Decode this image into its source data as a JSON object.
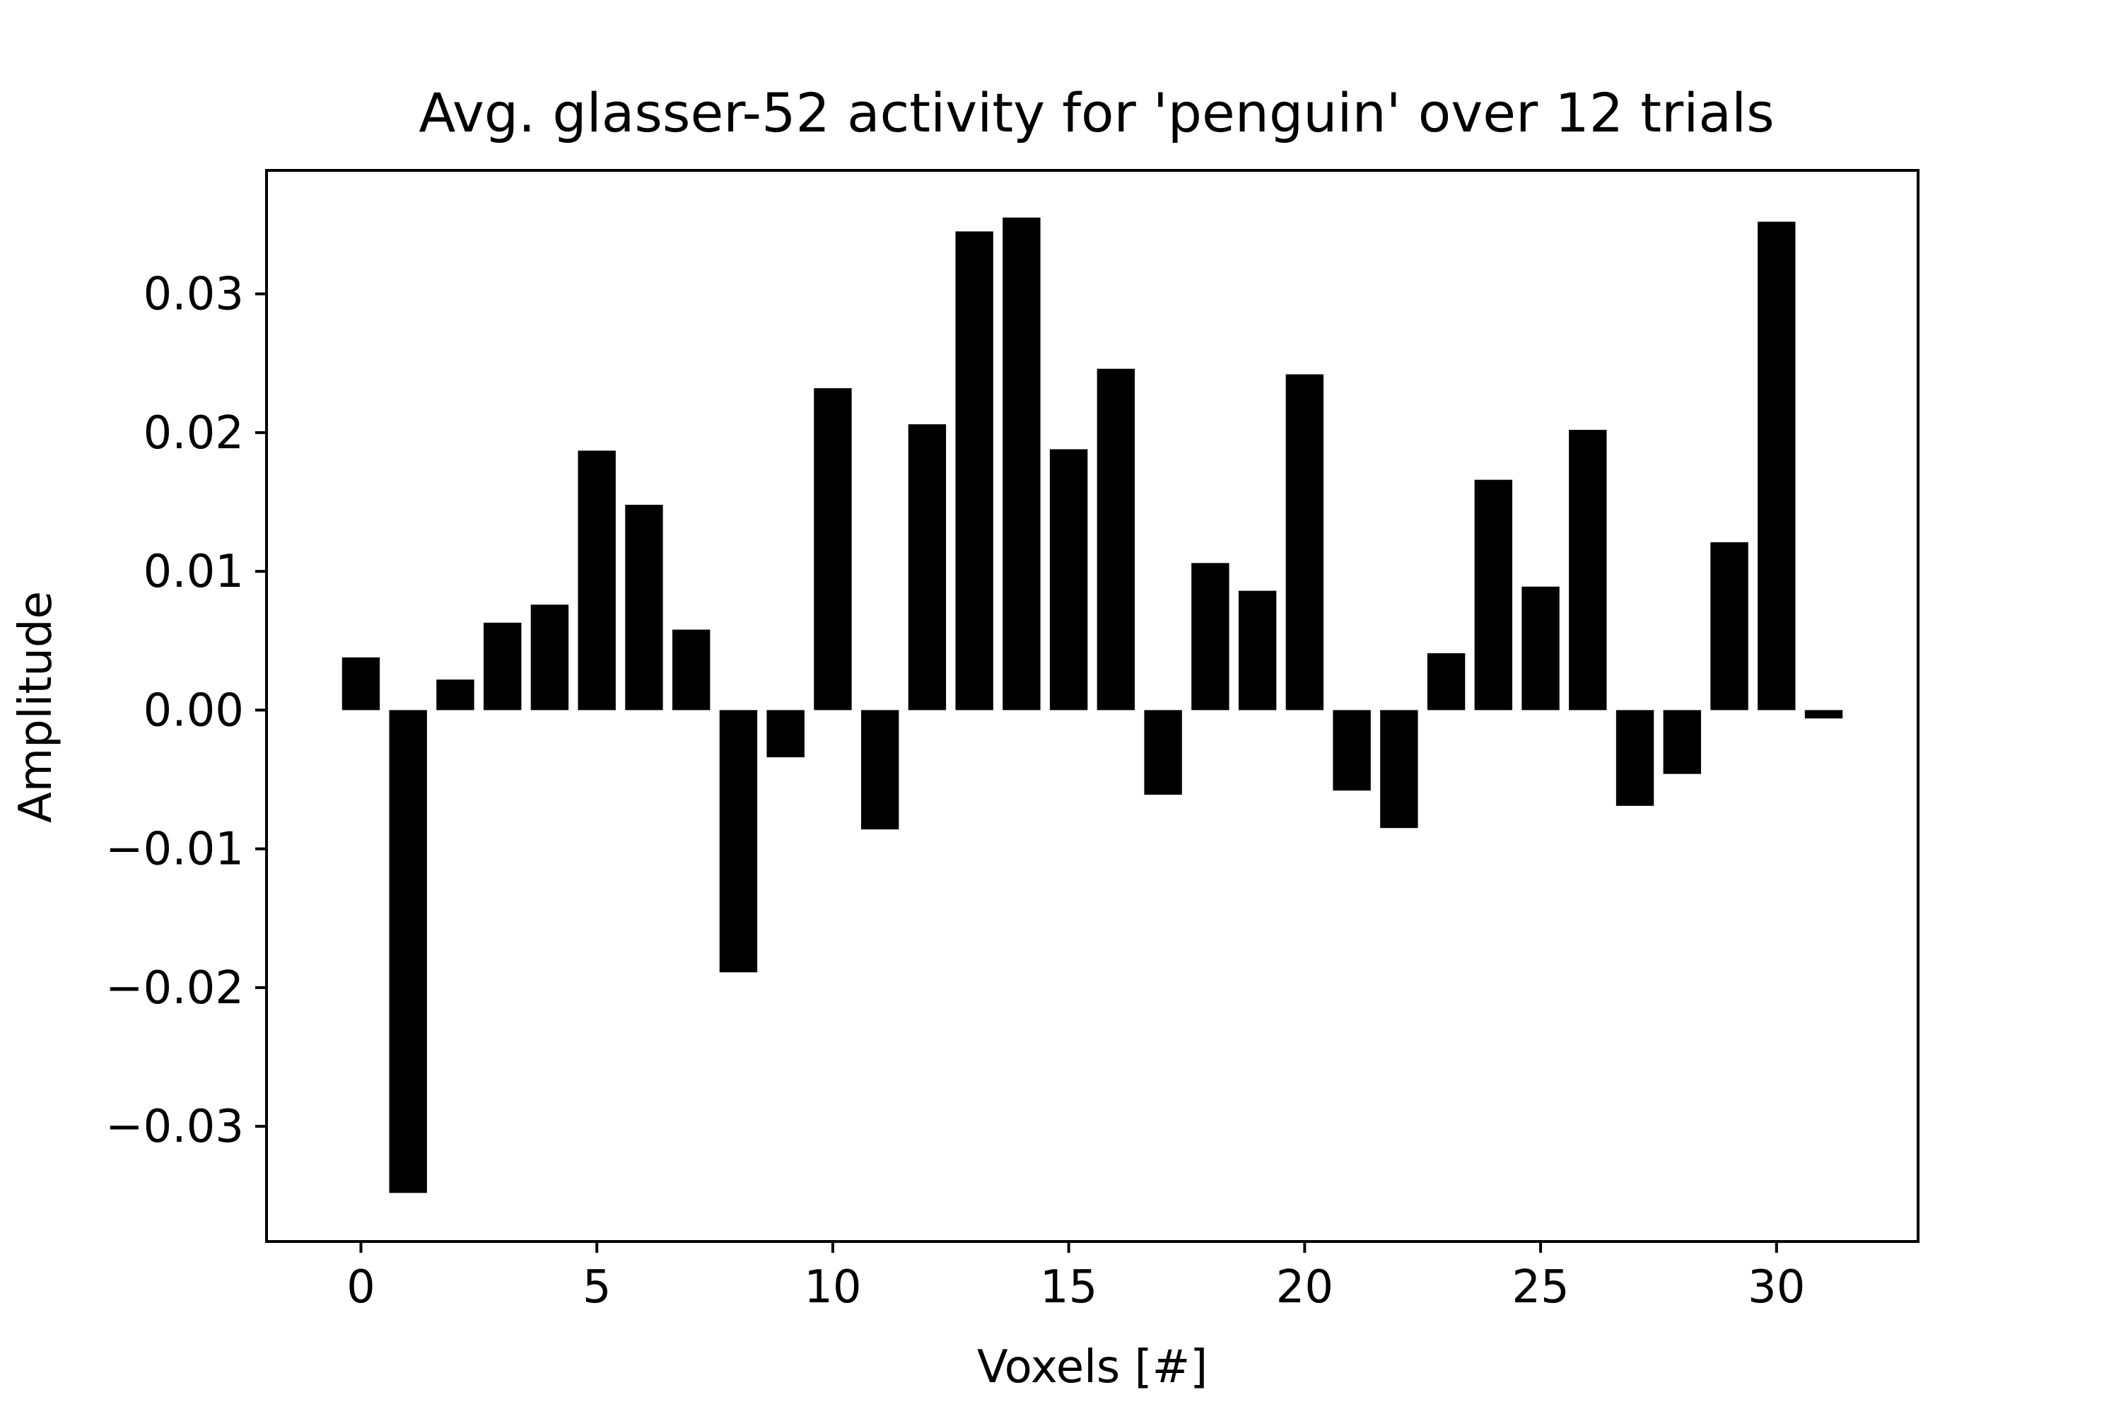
{
  "chart_data": {
    "type": "bar",
    "title": "Avg. glasser-52 activity for 'penguin' over 12 trials",
    "xlabel": "Voxels [#]",
    "ylabel": "Amplitude",
    "x": [
      0,
      1,
      2,
      3,
      4,
      5,
      6,
      7,
      8,
      9,
      10,
      11,
      12,
      13,
      14,
      15,
      16,
      17,
      18,
      19,
      20,
      21,
      22,
      23,
      24,
      25,
      26,
      27,
      28,
      29,
      30,
      31
    ],
    "values": [
      0.0038,
      -0.0348,
      0.0022,
      0.0063,
      0.0076,
      0.0187,
      0.0148,
      0.0058,
      -0.0189,
      -0.0034,
      0.0232,
      -0.0086,
      0.0206,
      0.0345,
      0.0355,
      0.0188,
      0.0246,
      -0.0061,
      0.0106,
      0.0086,
      0.0242,
      -0.0058,
      -0.0085,
      0.0041,
      0.0166,
      0.0089,
      0.0202,
      -0.0069,
      -0.0046,
      0.0121,
      0.0352,
      -0.0006
    ],
    "xlim": [
      -2,
      33
    ],
    "ylim": [
      -0.0383,
      0.0389
    ],
    "xticks": [
      0,
      5,
      10,
      15,
      20,
      25,
      30
    ],
    "xtick_labels": [
      "0",
      "5",
      "10",
      "15",
      "20",
      "25",
      "30"
    ],
    "yticks": [
      0.03,
      0.02,
      0.01,
      0.0,
      -0.01,
      -0.02,
      -0.03
    ],
    "ytick_labels": [
      "0.03",
      "0.02",
      "0.01",
      "0.00",
      "−0.01",
      "−0.02",
      "−0.03"
    ],
    "bar_color": "#000000",
    "grid": false,
    "legend": "none"
  }
}
